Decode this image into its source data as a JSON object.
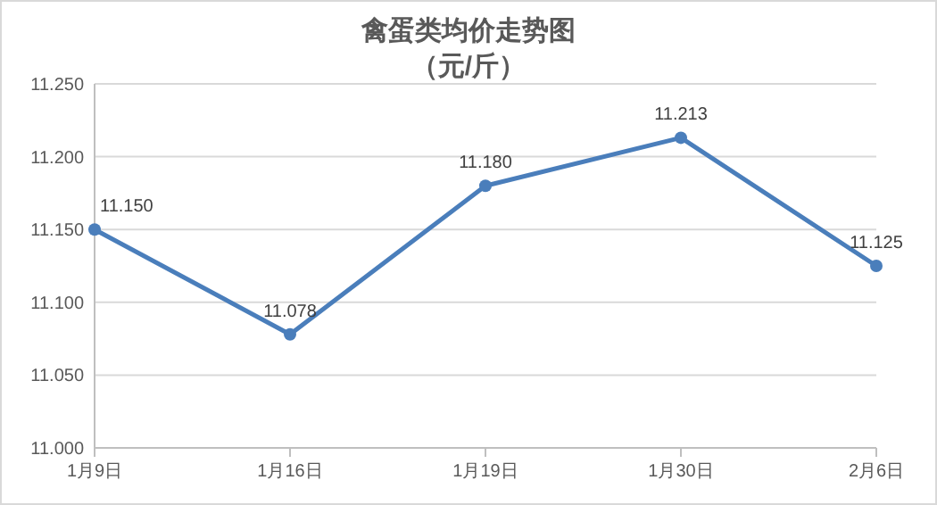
{
  "chart_data": {
    "type": "line",
    "title": "禽蛋类均价走势图",
    "subtitle": "（元/斤）",
    "categories": [
      "1月9日",
      "1月16日",
      "1月19日",
      "1月30日",
      "2月6日"
    ],
    "series": [
      {
        "color": "#4a7ebb",
        "values": [
          11.15,
          11.078,
          11.18,
          11.213,
          11.125
        ],
        "value_labels": [
          "11.150",
          "11.078",
          "11.180",
          "11.213",
          "11.125"
        ]
      }
    ],
    "ylim": [
      11.0,
      11.25
    ],
    "yticks": [
      {
        "value": 11.0,
        "label": "11.000"
      },
      {
        "value": 11.05,
        "label": "11.050"
      },
      {
        "value": 11.1,
        "label": "11.100"
      },
      {
        "value": 11.15,
        "label": "11.150"
      },
      {
        "value": 11.2,
        "label": "11.200"
      },
      {
        "value": 11.25,
        "label": "11.250"
      }
    ],
    "grid": "y",
    "marker": "circle",
    "line_style": "solid"
  }
}
